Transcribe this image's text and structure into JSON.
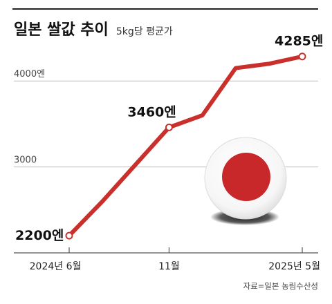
{
  "chart_data": {
    "type": "line",
    "title": "일본 쌀값 추이",
    "subtitle": "5kg당 평균가",
    "x": [
      "2024년 6월",
      "",
      "",
      "11월",
      "",
      "",
      "",
      "2025년 5월"
    ],
    "values": [
      2200,
      2600,
      3030,
      3460,
      3600,
      4150,
      4200,
      4285
    ],
    "y_ticks": [
      {
        "value": 3000,
        "label": "3000"
      },
      {
        "value": 4000,
        "label": "4000엔"
      }
    ],
    "x_tick_labels": [
      {
        "index": 0,
        "label": "2024년 6월"
      },
      {
        "index": 3,
        "label": "11월"
      },
      {
        "index": 7,
        "label": "2025년 5월"
      }
    ],
    "data_labels": [
      {
        "index": 0,
        "label": "2200엔"
      },
      {
        "index": 3,
        "label": "3460엔"
      },
      {
        "index": 7,
        "label": "4285엔"
      }
    ],
    "ylim": [
      2000,
      4500
    ],
    "grid": true,
    "line_color": "#c9302c"
  },
  "source": "자료=일본 농림수산성",
  "flag_color": "#c8282a"
}
